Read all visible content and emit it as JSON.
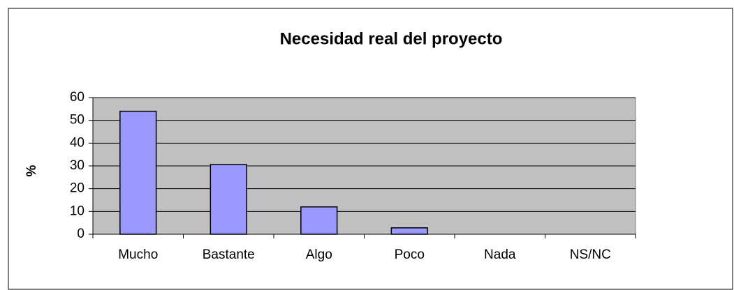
{
  "chart_data": {
    "type": "bar",
    "title": "Necesidad real del proyecto",
    "y_label": "%",
    "categories": [
      "Mucho",
      "Bastante",
      "Algo",
      "Poco",
      "Nada",
      "NS/NC"
    ],
    "values": [
      54,
      30.6,
      12,
      2.8,
      0,
      0
    ],
    "color": "#9999ff",
    "ylim": [
      0,
      60
    ],
    "yticks": [
      0,
      10,
      20,
      30,
      40,
      50,
      60
    ],
    "grid": true
  }
}
